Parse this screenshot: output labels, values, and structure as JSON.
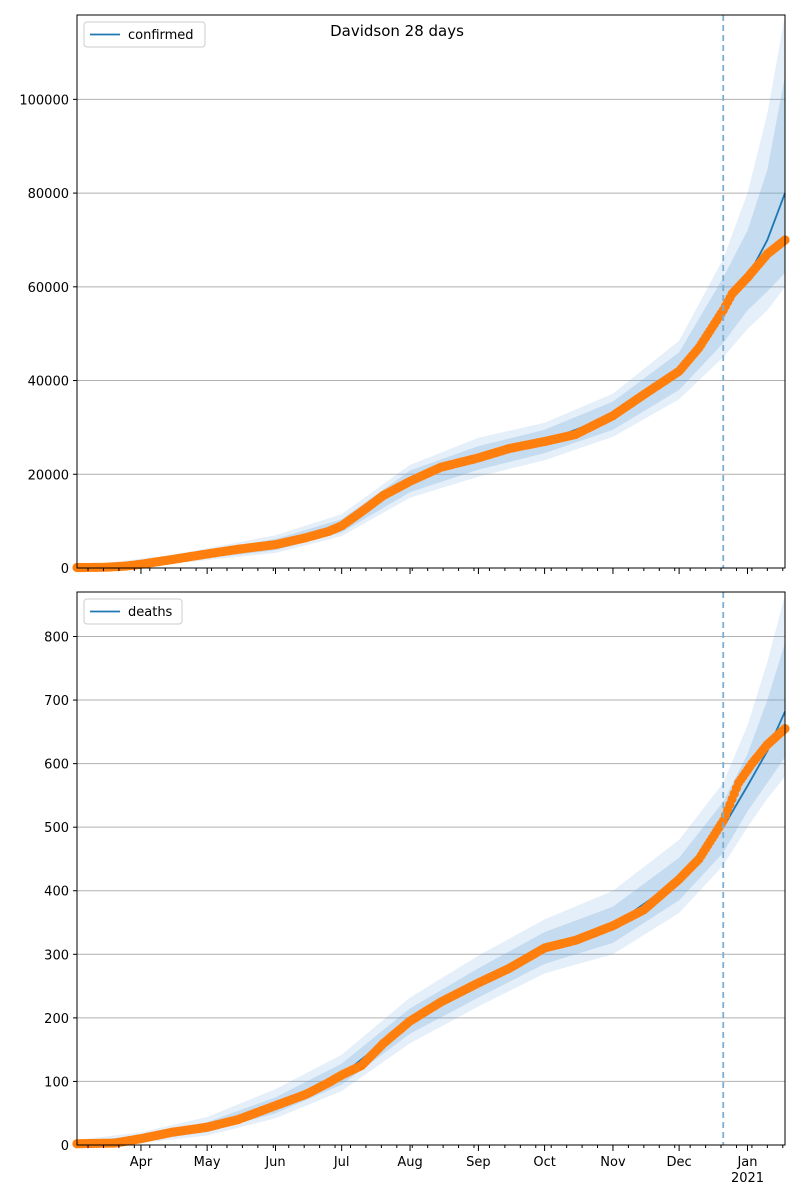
{
  "figure": {
    "suptitle": "Davidson 28 days",
    "x_ticks": [
      "Apr",
      "May",
      "Jun",
      "Jul",
      "Aug",
      "Sep",
      "Oct",
      "Nov",
      "Dec",
      "Jan"
    ],
    "x_year_label": "2021",
    "colors": {
      "model": "#1f77b4",
      "band": "#6fa8dc",
      "observed": "#ff7f0e",
      "forecast_line": "#7aafd4",
      "grid": "#b0b0b0"
    }
  },
  "chart_data": [
    {
      "type": "line",
      "legend": "confirmed",
      "legend_position": "top-left",
      "grid": "horizontal",
      "xlim": [
        "2020-03-03",
        "2021-01-18"
      ],
      "ylim": [
        0,
        118000
      ],
      "y_ticks": [
        0,
        20000,
        40000,
        60000,
        80000,
        100000
      ],
      "forecast_start": "2020-12-21",
      "series": [
        {
          "kind": "observed",
          "x": [
            "2020-03-03",
            "2020-03-15",
            "2020-03-25",
            "2020-04-01",
            "2020-04-15",
            "2020-05-01",
            "2020-05-15",
            "2020-06-01",
            "2020-06-15",
            "2020-06-25",
            "2020-07-01",
            "2020-07-10",
            "2020-07-20",
            "2020-08-01",
            "2020-08-15",
            "2020-09-01",
            "2020-09-15",
            "2020-10-01",
            "2020-10-15",
            "2020-11-01",
            "2020-11-15",
            "2020-12-01",
            "2020-12-10",
            "2020-12-21",
            "2020-12-25",
            "2021-01-01",
            "2021-01-10",
            "2021-01-18"
          ],
          "values": [
            100,
            150,
            400,
            800,
            1800,
            3000,
            4000,
            5000,
            6500,
            7800,
            9000,
            12000,
            15500,
            18500,
            21500,
            23500,
            25500,
            27000,
            28500,
            32500,
            37000,
            42000,
            47000,
            55000,
            58500,
            62000,
            67000,
            70000
          ]
        },
        {
          "kind": "model",
          "x": [
            "2020-03-03",
            "2020-04-15",
            "2020-06-01",
            "2020-07-01",
            "2020-08-01",
            "2020-09-01",
            "2020-10-01",
            "2020-11-01",
            "2020-12-01",
            "2020-12-21",
            "2021-01-01",
            "2021-01-10",
            "2021-01-18"
          ],
          "values": [
            100,
            1800,
            5000,
            9000,
            18500,
            23500,
            27000,
            32500,
            42000,
            55000,
            62000,
            70000,
            80000
          ]
        }
      ],
      "uncertainty_bands": [
        {
          "x": [
            "2020-03-03",
            "2020-04-15",
            "2020-06-01",
            "2020-07-01",
            "2020-08-01",
            "2020-09-01",
            "2020-10-01",
            "2020-11-01",
            "2020-12-01",
            "2020-12-21",
            "2021-01-01",
            "2021-01-10",
            "2021-01-18"
          ],
          "lower": [
            0,
            1200,
            3800,
            7600,
            16200,
            21000,
            24500,
            29500,
            38000,
            48000,
            55000,
            59000,
            63000
          ],
          "upper": [
            200,
            2400,
            6200,
            10400,
            20800,
            26000,
            29500,
            35500,
            46000,
            62000,
            72000,
            85000,
            105000
          ]
        },
        {
          "x": [
            "2020-03-03",
            "2020-04-15",
            "2020-06-01",
            "2020-07-01",
            "2020-08-01",
            "2020-09-01",
            "2020-10-01",
            "2020-11-01",
            "2020-12-01",
            "2020-12-21",
            "2021-01-01",
            "2021-01-10",
            "2021-01-18"
          ],
          "lower": [
            0,
            900,
            3200,
            6800,
            15000,
            19500,
            23000,
            28000,
            36000,
            45000,
            51000,
            55000,
            60000
          ],
          "upper": [
            300,
            2800,
            7000,
            11500,
            22000,
            27800,
            31000,
            37200,
            48500,
            66000,
            80000,
            97000,
            118000
          ]
        }
      ]
    },
    {
      "type": "line",
      "legend": "deaths",
      "legend_position": "top-left",
      "grid": "horizontal",
      "xlim": [
        "2020-03-03",
        "2021-01-18"
      ],
      "ylim": [
        0,
        870
      ],
      "y_ticks": [
        0,
        100,
        200,
        300,
        400,
        500,
        600,
        700,
        800
      ],
      "forecast_start": "2020-12-21",
      "series": [
        {
          "kind": "observed",
          "x": [
            "2020-03-03",
            "2020-03-20",
            "2020-04-01",
            "2020-04-15",
            "2020-05-01",
            "2020-05-15",
            "2020-06-01",
            "2020-06-15",
            "2020-06-25",
            "2020-07-01",
            "2020-07-10",
            "2020-07-20",
            "2020-08-01",
            "2020-08-15",
            "2020-09-01",
            "2020-09-15",
            "2020-10-01",
            "2020-10-15",
            "2020-11-01",
            "2020-11-15",
            "2020-12-01",
            "2020-12-10",
            "2020-12-21",
            "2020-12-28",
            "2021-01-03",
            "2021-01-10",
            "2021-01-18"
          ],
          "values": [
            2,
            3,
            10,
            20,
            28,
            40,
            62,
            80,
            98,
            110,
            125,
            160,
            195,
            225,
            255,
            278,
            310,
            322,
            345,
            370,
            418,
            450,
            510,
            570,
            600,
            630,
            655
          ]
        },
        {
          "kind": "model",
          "x": [
            "2020-03-03",
            "2020-04-01",
            "2020-05-01",
            "2020-06-01",
            "2020-07-01",
            "2020-08-01",
            "2020-09-01",
            "2020-10-01",
            "2020-11-01",
            "2020-12-01",
            "2020-12-21",
            "2021-01-01",
            "2021-01-10",
            "2021-01-18"
          ],
          "values": [
            2,
            10,
            28,
            62,
            110,
            195,
            255,
            310,
            345,
            418,
            500,
            565,
            620,
            682
          ]
        }
      ],
      "uncertainty_bands": [
        {
          "x": [
            "2020-03-03",
            "2020-04-01",
            "2020-05-01",
            "2020-06-01",
            "2020-07-01",
            "2020-08-01",
            "2020-09-01",
            "2020-10-01",
            "2020-11-01",
            "2020-12-01",
            "2020-12-21",
            "2021-01-01",
            "2021-01-10",
            "2021-01-18"
          ],
          "lower": [
            0,
            6,
            20,
            50,
            95,
            175,
            232,
            285,
            318,
            385,
            460,
            525,
            570,
            610
          ],
          "upper": [
            5,
            15,
            36,
            75,
            128,
            215,
            278,
            335,
            375,
            452,
            540,
            615,
            700,
            790
          ]
        },
        {
          "x": [
            "2020-03-03",
            "2020-04-01",
            "2020-05-01",
            "2020-06-01",
            "2020-07-01",
            "2020-08-01",
            "2020-09-01",
            "2020-10-01",
            "2020-11-01",
            "2020-12-01",
            "2020-12-21",
            "2021-01-01",
            "2021-01-10",
            "2021-01-18"
          ],
          "lower": [
            0,
            3,
            15,
            42,
            85,
            160,
            218,
            270,
            300,
            365,
            440,
            500,
            545,
            580
          ],
          "upper": [
            8,
            20,
            44,
            88,
            142,
            232,
            298,
            355,
            400,
            480,
            570,
            660,
            760,
            865
          ]
        }
      ]
    }
  ]
}
